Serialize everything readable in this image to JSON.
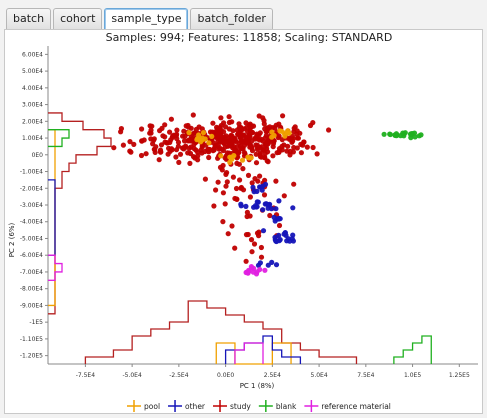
{
  "tabs": [
    {
      "label": "batch"
    },
    {
      "label": "cohort"
    },
    {
      "label": "sample_type",
      "active": true
    },
    {
      "label": "batch_folder"
    }
  ],
  "chart_data": {
    "type": "scatter",
    "title": "Samples: 994; Features: 11858; Scaling: STANDARD",
    "xlabel": "PC 1 (8%)",
    "ylabel": "PC 2 (6%)",
    "xlim": [
      -95000,
      135000
    ],
    "ylim": [
      -125000,
      65000
    ],
    "x_ticks": [
      "-7.5E4",
      "-5.0E4",
      "-2.5E4",
      "0.0E0",
      "2.5E4",
      "5.0E4",
      "7.5E4",
      "1.0E5",
      "1.25E5"
    ],
    "x_tick_values": [
      -75000,
      -50000,
      -25000,
      0,
      25000,
      50000,
      75000,
      100000,
      125000
    ],
    "y_ticks": [
      "6.00E4",
      "5.00E4",
      "4.00E4",
      "3.00E4",
      "2.00E4",
      "1.00E4",
      "0E0",
      "-1.00E4",
      "-2.00E4",
      "-3.00E4",
      "-4.00E4",
      "-5.00E4",
      "-6.00E4",
      "-7.00E4",
      "-8.00E4",
      "-9.00E4",
      "-1E5",
      "-1.10E5",
      "-1.20E5"
    ],
    "y_tick_values": [
      60000,
      50000,
      40000,
      30000,
      20000,
      10000,
      0,
      -10000,
      -20000,
      -30000,
      -40000,
      -50000,
      -60000,
      -70000,
      -80000,
      -90000,
      -100000,
      -110000,
      -120000
    ],
    "grid": false,
    "legend_position": "bottom",
    "series": [
      {
        "name": "pool",
        "color": "#f0a000",
        "clusters": [
          {
            "cx": -14000,
            "cy": 10000,
            "sx": 4000,
            "sy": 2000,
            "n": 12
          },
          {
            "cx": 28000,
            "cy": 12500,
            "sx": 3000,
            "sy": 1500,
            "n": 10
          },
          {
            "cx": 6000,
            "cy": -2000,
            "sx": 4000,
            "sy": 1000,
            "n": 10
          }
        ]
      },
      {
        "name": "other",
        "color": "#1515b8",
        "clusters": [
          {
            "cx": 21000,
            "cy": -30000,
            "sx": 6000,
            "sy": 1500,
            "n": 20
          },
          {
            "cx": 29000,
            "cy": -50000,
            "sx": 5000,
            "sy": 2000,
            "n": 18
          },
          {
            "cx": 18000,
            "cy": -20000,
            "sx": 2000,
            "sy": 1500,
            "n": 8
          },
          {
            "cx": 27000,
            "cy": -38000,
            "sx": 2500,
            "sy": 1000,
            "n": 6
          },
          {
            "cx": 22000,
            "cy": -66000,
            "sx": 3000,
            "sy": 800,
            "n": 5
          }
        ]
      },
      {
        "name": "study",
        "color": "#c00000",
        "clusters": [
          {
            "cx": 0,
            "cy": 9000,
            "sx": 22000,
            "sy": 5500,
            "n": 420
          },
          {
            "cx": 7000,
            "cy": -10000,
            "sx": 12000,
            "sy": 14000,
            "n": 60
          },
          {
            "cx": 15000,
            "cy": -45000,
            "sx": 8000,
            "sy": 20000,
            "n": 25
          }
        ]
      },
      {
        "name": "blank",
        "color": "#20b020",
        "clusters": [
          {
            "cx": 98000,
            "cy": 12000,
            "sx": 6000,
            "sy": 700,
            "n": 22
          }
        ]
      },
      {
        "name": "reference material",
        "color": "#e020e0",
        "clusters": [
          {
            "cx": 16000,
            "cy": -69000,
            "sx": 3000,
            "sy": 1500,
            "n": 14
          }
        ]
      }
    ],
    "x_histograms": [
      {
        "name": "study",
        "color": "#b52020",
        "edges": [
          -75000,
          -60000,
          -50000,
          -40000,
          -30000,
          -20000,
          -10000,
          0,
          10000,
          20000,
          30000,
          40000,
          50000,
          60000,
          70000
        ],
        "heights": [
          1,
          2,
          4,
          5,
          6,
          9,
          8,
          7,
          6,
          5,
          3,
          2,
          1,
          1
        ]
      },
      {
        "name": "pool",
        "color": "#f0a000",
        "edges": [
          -5000,
          5000,
          25000,
          35000
        ],
        "heights": [
          3,
          0,
          3
        ]
      },
      {
        "name": "other",
        "color": "#1515b8",
        "edges": [
          0,
          10000,
          20000,
          25000,
          30000,
          40000
        ],
        "heights": [
          2,
          3,
          4,
          2,
          1
        ]
      },
      {
        "name": "blank",
        "color": "#20b020",
        "edges": [
          90000,
          95000,
          100000,
          105000,
          110000
        ],
        "heights": [
          1,
          2,
          3,
          4
        ]
      },
      {
        "name": "reference material",
        "color": "#e020e0",
        "edges": [
          5000,
          10000,
          20000
        ],
        "heights": [
          2,
          3
        ]
      }
    ],
    "y_histograms": [
      {
        "name": "study",
        "color": "#b52020",
        "edges": [
          25000,
          20000,
          15000,
          10000,
          5000,
          0,
          -5000,
          -10000,
          -20000,
          -40000,
          -60000,
          -80000,
          -95000
        ],
        "heights": [
          2,
          5,
          8,
          9,
          7,
          4,
          3,
          2,
          1,
          1,
          1,
          1
        ]
      },
      {
        "name": "pool",
        "color": "#f0a000",
        "edges": [
          15000,
          10000,
          5000,
          0,
          -90000
        ],
        "heights": [
          1,
          1,
          1,
          1
        ]
      },
      {
        "name": "blank",
        "color": "#20b020",
        "edges": [
          15000,
          10000,
          5000
        ],
        "heights": [
          3,
          2
        ]
      },
      {
        "name": "other",
        "color": "#1515b8",
        "edges": [
          -15000,
          -25000,
          -35000,
          -45000,
          -55000,
          -60000
        ],
        "heights": [
          1,
          1,
          1,
          1,
          1
        ]
      },
      {
        "name": "reference material",
        "color": "#e020e0",
        "edges": [
          -60000,
          -65000,
          -70000,
          -75000
        ],
        "heights": [
          1,
          2,
          1
        ]
      }
    ]
  }
}
